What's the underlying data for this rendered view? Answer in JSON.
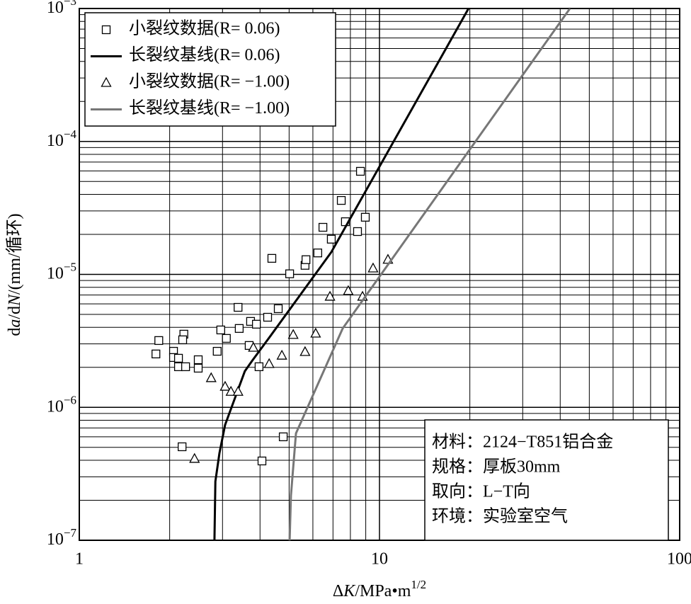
{
  "chart_data": {
    "type": "scatter",
    "xlabel": [
      "Δ",
      "K",
      "/MPa•m",
      "1/2"
    ],
    "ylabel": [
      "d",
      "a",
      "/d",
      "N",
      "/(mm/循环)"
    ],
    "xscale": "log",
    "yscale": "log",
    "grid": "major-minor",
    "xlim": [
      1,
      100
    ],
    "ylim": [
      1e-07,
      0.001
    ],
    "xticks": [
      1,
      10,
      100
    ],
    "yticks": [
      {
        "value": 1e-07,
        "label": "10",
        "exp": "−7"
      },
      {
        "value": 1e-06,
        "label": "10",
        "exp": "−6"
      },
      {
        "value": 1e-05,
        "label": "10",
        "exp": "−5"
      },
      {
        "value": 0.0001,
        "label": "10",
        "exp": "−4"
      },
      {
        "value": 0.001,
        "label": "10",
        "exp": "−3"
      }
    ],
    "legend": "upper left",
    "series": [
      {
        "name": "小裂纹数据(R= 0.06)",
        "type": "scatter",
        "marker": "square",
        "color": "#000000",
        "x": [
          1.8,
          1.84,
          2.14,
          2.26,
          2.06,
          2.06,
          2.14,
          2.49,
          2.49,
          2.23,
          2.21,
          2.88,
          2.96,
          3.09,
          3.38,
          3.41,
          3.68,
          3.72,
          3.89,
          3.97,
          4.24,
          4.38,
          4.6,
          5.02,
          5.65,
          5.69,
          6.23,
          6.48,
          6.91,
          7.46,
          7.7,
          8.45,
          8.64,
          8.97,
          2.2,
          4.06,
          4.78
        ],
        "values": [
          2.52e-06,
          3.18e-06,
          2.02e-06,
          2.02e-06,
          2.64e-06,
          2.37e-06,
          2.34e-06,
          1.97e-06,
          2.28e-06,
          3.55e-06,
          3.22e-06,
          2.64e-06,
          3.82e-06,
          3.3e-06,
          5.65e-06,
          3.92e-06,
          2.92e-06,
          4.43e-06,
          4.22e-06,
          2.02e-06,
          4.76e-06,
          1.32e-05,
          5.52e-06,
          1.01e-05,
          1.17e-05,
          1.29e-05,
          1.45e-05,
          2.26e-05,
          1.84e-05,
          3.6e-05,
          2.49e-05,
          2.1e-05,
          5.96e-05,
          2.69e-05,
          5.05e-07,
          3.95e-07,
          6e-07
        ]
      },
      {
        "name": "长裂纹基线(R= 0.06)",
        "type": "line",
        "color": "#000000",
        "x": [
          2.82,
          2.84,
          2.93,
          3.06,
          3.56,
          3.76,
          4.24,
          6.91,
          19.8
        ],
        "values": [
          1e-07,
          2.77e-07,
          4.52e-07,
          7.38e-07,
          1.87e-06,
          2.23e-06,
          3.22e-06,
          1.47e-05,
          0.001
        ]
      },
      {
        "name": "小裂纹数据(R= −1.00)",
        "type": "scatter",
        "marker": "triangle",
        "color": "#000000",
        "x": [
          2.42,
          2.75,
          3.06,
          3.2,
          3.38,
          3.8,
          4.29,
          4.73,
          5.16,
          5.65,
          6.13,
          6.84,
          7.87,
          8.78,
          9.52,
          10.67
        ],
        "values": [
          4.1e-07,
          1.66e-06,
          1.43e-06,
          1.31e-06,
          1.31e-06,
          2.81e-06,
          2.12e-06,
          2.45e-06,
          3.51e-06,
          2.61e-06,
          3.59e-06,
          6.8e-06,
          7.5e-06,
          6.8e-06,
          1.11e-05,
          1.29e-05
        ]
      },
      {
        "name": "长裂纹基线(R= −1.00)",
        "type": "line",
        "color": "#777777",
        "x": [
          5.02,
          5.07,
          5.27,
          7.54,
          43.1
        ],
        "values": [
          1e-07,
          2.17e-07,
          6.37e-07,
          3.92e-06,
          0.001
        ]
      }
    ],
    "annotation": [
      "材料：2124−T851铝合金",
      "规格：厚板30mm",
      "取向：L−T向",
      "环境：实验室空气"
    ]
  }
}
